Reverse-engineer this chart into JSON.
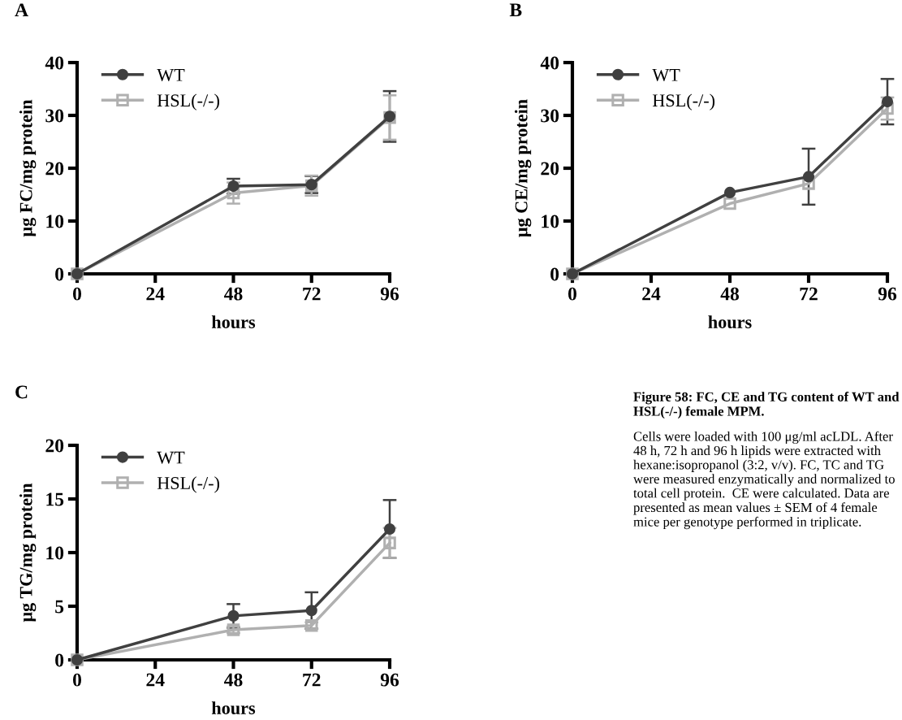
{
  "chart_data": [
    {
      "type": "line",
      "title": "A",
      "xlabel": "hours",
      "ylabel": "μg FC/mg protein",
      "x": [
        0,
        48,
        72,
        96
      ],
      "xlim": [
        0,
        96
      ],
      "xticks": [
        0,
        24,
        48,
        72,
        96
      ],
      "ylim": [
        0,
        40
      ],
      "yticks": [
        0,
        10,
        20,
        30,
        40
      ],
      "grid": false,
      "legend": "top left",
      "series": [
        {
          "name": "WT",
          "color": "#404040",
          "marker": "circle",
          "values": [
            0,
            16.6,
            16.9,
            29.8
          ],
          "errors": [
            null,
            1.4,
            1.6,
            4.8
          ]
        },
        {
          "name": "HSL(-/-)",
          "color": "#b0b0b0",
          "marker": "square",
          "values": [
            0,
            15.3,
            16.7,
            29.6
          ],
          "errors": [
            null,
            2.0,
            1.9,
            4.2
          ]
        }
      ]
    },
    {
      "type": "line",
      "title": "B",
      "xlabel": "hours",
      "ylabel": "μg CE/mg protein",
      "x": [
        0,
        48,
        72,
        96
      ],
      "xlim": [
        0,
        96
      ],
      "xticks": [
        0,
        24,
        48,
        72,
        96
      ],
      "ylim": [
        0,
        40
      ],
      "yticks": [
        0,
        10,
        20,
        30,
        40
      ],
      "grid": false,
      "legend": "top left",
      "series": [
        {
          "name": "WT",
          "color": "#404040",
          "marker": "circle",
          "values": [
            0,
            15.4,
            18.4,
            32.6
          ],
          "errors": [
            null,
            null,
            5.3,
            4.3
          ]
        },
        {
          "name": "HSL(-/-)",
          "color": "#b0b0b0",
          "marker": "square",
          "values": [
            0,
            13.3,
            17.1,
            31.3
          ],
          "errors": [
            null,
            null,
            null,
            2.1
          ]
        }
      ]
    },
    {
      "type": "line",
      "title": "C",
      "xlabel": "hours",
      "ylabel": "μg TG/mg protein",
      "x": [
        0,
        48,
        72,
        96
      ],
      "xlim": [
        0,
        96
      ],
      "xticks": [
        0,
        24,
        48,
        72,
        96
      ],
      "ylim": [
        0,
        20
      ],
      "yticks": [
        0,
        5,
        10,
        15,
        20
      ],
      "grid": false,
      "legend": "top left",
      "series": [
        {
          "name": "WT",
          "color": "#404040",
          "marker": "circle",
          "values": [
            0,
            4.1,
            4.6,
            12.2
          ],
          "errors": [
            null,
            1.1,
            1.7,
            2.7
          ]
        },
        {
          "name": "HSL(-/-)",
          "color": "#b0b0b0",
          "marker": "square",
          "values": [
            0,
            2.8,
            3.2,
            10.9
          ],
          "errors": [
            null,
            0.3,
            0.3,
            1.4
          ]
        }
      ]
    },
    {
      "type": "other",
      "annotations": [
        "Figure 58: FC, CE and TG content of WT and HSL(-/-) female MPM.",
        "Cells were loaded with 100 μg/ml acLDL. After 48 h, 72 h and 96 h lipids were extracted with hexane:isopropanol (3:2, v/v). FC, TC and TG were measured enzymatically and normalized to total cell protein.  CE were calculated. Data are presented as mean values ± SEM of 4 female mice per genotype performed in triplicate."
      ]
    }
  ]
}
